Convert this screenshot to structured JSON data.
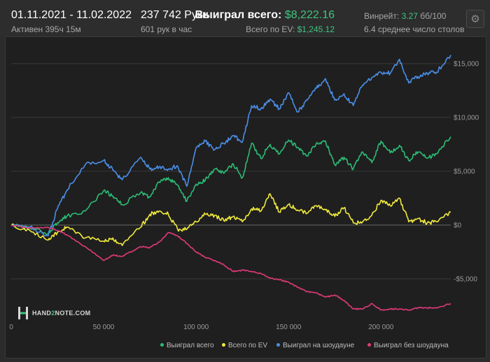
{
  "header": {
    "date_range": "01.11.2021 - 11.02.2022",
    "active": "Активен 395ч 15м",
    "hands": "237 742 Руки",
    "hands_per_hour": "601 рук в час",
    "won_label": "Выиграл всего:",
    "won_value": "$8,222.16",
    "ev_label": "Всего по EV:",
    "ev_value": "$1,245.12",
    "winrate_label": "Винрейт:",
    "winrate_value": "3.27",
    "winrate_unit": "бб/100",
    "avg_tables": "6.4 среднее число столов",
    "settings_icon": "gear-icon"
  },
  "logo": {
    "pre": "HAND",
    "mid": "2",
    "post": "NOTE.COM"
  },
  "colors": {
    "won": "#2bbd75",
    "ev": "#f0ea3c",
    "showdown": "#4a8fe8",
    "non_showdown": "#e03a78",
    "accent": "#3ec57e"
  },
  "chart_data": {
    "type": "line",
    "xlabel": "",
    "ylabel": "",
    "xlim": [
      0,
      237742
    ],
    "ylim": [
      -9000,
      16000
    ],
    "x_ticks": [
      0,
      50000,
      100000,
      150000,
      200000
    ],
    "x_tick_labels": [
      "0",
      "50 000",
      "100 000",
      "150 000",
      "200 000"
    ],
    "y_ticks": [
      15000,
      10000,
      5000,
      0,
      -5000
    ],
    "y_tick_labels": [
      "$15,000",
      "$10,000",
      "$5,000",
      "$0",
      "-$5,000"
    ],
    "grid": "horizontal",
    "legend_position": "bottom-right",
    "x": [
      0,
      10000,
      20000,
      25000,
      30000,
      40000,
      50000,
      55000,
      60000,
      70000,
      75000,
      80000,
      85000,
      90000,
      95000,
      100000,
      105000,
      110000,
      115000,
      120000,
      125000,
      130000,
      135000,
      140000,
      145000,
      150000,
      155000,
      160000,
      165000,
      170000,
      175000,
      180000,
      185000,
      190000,
      195000,
      200000,
      205000,
      210000,
      215000,
      220000,
      225000,
      230000,
      237742
    ],
    "series": [
      {
        "name": "Выиграл всего",
        "color_key": "won",
        "values": [
          0,
          -300,
          -800,
          200,
          800,
          1300,
          3200,
          2700,
          1900,
          3000,
          2600,
          4000,
          4400,
          3700,
          2200,
          3800,
          4200,
          5200,
          4800,
          5700,
          4400,
          7600,
          6200,
          7500,
          6600,
          7900,
          7200,
          6400,
          7600,
          7800,
          5600,
          6300,
          5200,
          6800,
          5800,
          7800,
          6700,
          7400,
          6000,
          6800,
          6200,
          6600,
          8200
        ]
      },
      {
        "name": "Всего по EV",
        "color_key": "ev",
        "values": [
          0,
          -500,
          -1400,
          -700,
          -200,
          -1200,
          -1500,
          -1200,
          -1900,
          -200,
          1000,
          1300,
          1000,
          -400,
          -400,
          300,
          1000,
          900,
          400,
          800,
          300,
          1500,
          1300,
          2900,
          1200,
          1900,
          1400,
          1100,
          1800,
          1400,
          800,
          1600,
          200,
          300,
          900,
          2300,
          1800,
          2500,
          300,
          600,
          200,
          300,
          1200
        ]
      },
      {
        "name": "Выиграл на шоудауне",
        "color_key": "showdown",
        "values": [
          0,
          -200,
          -1000,
          1500,
          3200,
          5600,
          6000,
          5100,
          4200,
          6300,
          5200,
          5400,
          5200,
          5500,
          3600,
          7200,
          7800,
          7000,
          7600,
          8300,
          7700,
          11100,
          10800,
          11700,
          10800,
          12300,
          10500,
          11600,
          12700,
          13600,
          11600,
          12200,
          11100,
          13000,
          13700,
          14200,
          14100,
          15400,
          13200,
          13800,
          14100,
          14200,
          15800
        ]
      },
      {
        "name": "Выиграл без шоудауна",
        "color_key": "non_showdown",
        "values": [
          0,
          -300,
          -200,
          -500,
          -900,
          -2000,
          -3300,
          -2800,
          -2900,
          -2000,
          -2100,
          -1600,
          -700,
          -1000,
          -1700,
          -2500,
          -3000,
          -3300,
          -3700,
          -4300,
          -4200,
          -4300,
          -4500,
          -4900,
          -5100,
          -5300,
          -5800,
          -6200,
          -6300,
          -6700,
          -6500,
          -7000,
          -7800,
          -7800,
          -7300,
          -7900,
          -7800,
          -7800,
          -7900,
          -7700,
          -7700,
          -7700,
          -7300
        ]
      }
    ]
  }
}
